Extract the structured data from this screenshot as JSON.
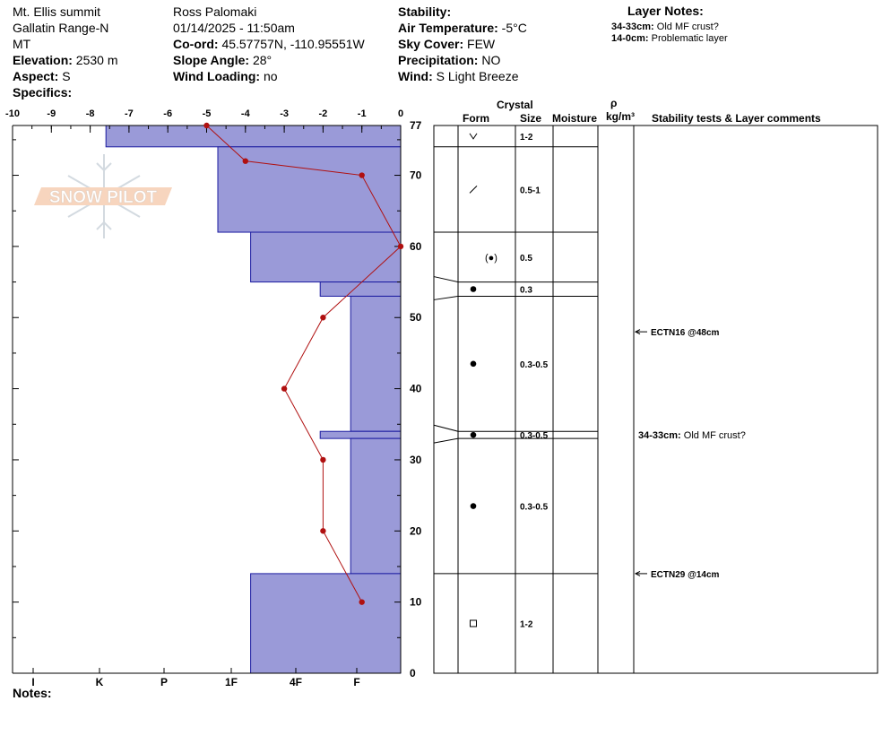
{
  "header": {
    "location": "Mt. Ellis summit",
    "range": "Gallatin Range-N",
    "state": "MT",
    "elevation_label": "Elevation:",
    "elevation": "2530 m",
    "aspect_label": "Aspect:",
    "aspect": "S",
    "specifics_label": "Specifics:",
    "observer": "Ross Palomaki",
    "datetime": "01/14/2025 - 11:50am",
    "coord_label": "Co-ord:",
    "coord": "45.57757N, -110.95551W",
    "slope_label": "Slope Angle:",
    "slope": "28°",
    "windload_label": "Wind Loading:",
    "windload": "no",
    "stability_label": "Stability:",
    "airtemp_label": "Air Temperature:",
    "airtemp": "-5°C",
    "sky_label": "Sky Cover:",
    "sky": "FEW",
    "precip_label": "Precipitation:",
    "precip": "NO",
    "wind_label": "Wind:",
    "wind": "S Light Breeze"
  },
  "layer_notes": {
    "title": "Layer Notes:",
    "items": [
      {
        "range": "34-33cm:",
        "text": "Old MF crust?"
      },
      {
        "range": "14-0cm:",
        "text": "Problematic layer"
      }
    ]
  },
  "columns": {
    "crystal": "Crystal",
    "form": "Form",
    "size": "Size",
    "moisture": "Moisture",
    "rho": "ρ",
    "density": "kg/m³",
    "stability": "Stability tests & Layer comments"
  },
  "footer": {
    "notes_label": "Notes:"
  },
  "logo": {
    "text": "SNOW PILOT"
  },
  "colors": {
    "hardness_fill": "#9a9ad8",
    "hardness_stroke": "#1a1aa0",
    "temp": "#b01010"
  },
  "chart_data": {
    "type": "area",
    "title": "",
    "temperature_axis": {
      "ticks": [
        -10,
        -9,
        -8,
        -7,
        -6,
        -5,
        -4,
        -3,
        -2,
        -1,
        0
      ],
      "range": [
        -10,
        0
      ]
    },
    "height_axis": {
      "range": [
        0,
        77
      ],
      "ticks": [
        0,
        10,
        20,
        30,
        40,
        50,
        60,
        70,
        77
      ]
    },
    "hardness_axis": {
      "labels": [
        "I",
        "K",
        "P",
        "1F",
        "4F",
        "F"
      ]
    },
    "temperature_profile": [
      {
        "h": 77,
        "t": -5
      },
      {
        "h": 72,
        "t": -4
      },
      {
        "h": 70,
        "t": -1
      },
      {
        "h": 60,
        "t": 0
      },
      {
        "h": 50,
        "t": -2
      },
      {
        "h": 40,
        "t": -3
      },
      {
        "h": 30,
        "t": -2
      },
      {
        "h": 20,
        "t": -2
      },
      {
        "h": 10,
        "t": -1
      }
    ],
    "hardness_layers": [
      {
        "top": 77,
        "bottom": 74,
        "hardness": 1.1
      },
      {
        "top": 74,
        "bottom": 62,
        "hardness": 2.8
      },
      {
        "top": 62,
        "bottom": 55,
        "hardness": 3.3
      },
      {
        "top": 55,
        "bottom": 53,
        "hardness": 4.4
      },
      {
        "top": 53,
        "bottom": 34,
        "hardness": 4.9
      },
      {
        "top": 34,
        "bottom": 33,
        "hardness": 4.4
      },
      {
        "top": 33,
        "bottom": 14,
        "hardness": 4.9
      },
      {
        "top": 14,
        "bottom": 0,
        "hardness": 3.3
      }
    ],
    "layers": [
      {
        "top": 77,
        "bottom": 74,
        "form": "v",
        "size": "1-2"
      },
      {
        "top": 74,
        "bottom": 62,
        "form": "slash",
        "size": "0.5-1"
      },
      {
        "top": 62,
        "bottom": 55,
        "form": "paren-dot",
        "size": "0.5"
      },
      {
        "top": 55,
        "bottom": 53,
        "form": "dot",
        "size": "0.3"
      },
      {
        "top": 53,
        "bottom": 34,
        "form": "dot",
        "size": "0.3-0.5"
      },
      {
        "top": 34,
        "bottom": 33,
        "form": "dot",
        "size": "0.3-0.5"
      },
      {
        "top": 33,
        "bottom": 14,
        "form": "dot",
        "size": "0.3-0.5"
      },
      {
        "top": 14,
        "bottom": 0,
        "form": "square",
        "size": "1-2"
      }
    ],
    "stability_tests": [
      {
        "h": 48,
        "text": "ECTN16 @48cm"
      },
      {
        "h": 14,
        "text": "ECTN29 @14cm"
      }
    ],
    "layer_comments": [
      {
        "h": 33.5,
        "text": "34-33cm: Old MF crust?"
      }
    ]
  }
}
